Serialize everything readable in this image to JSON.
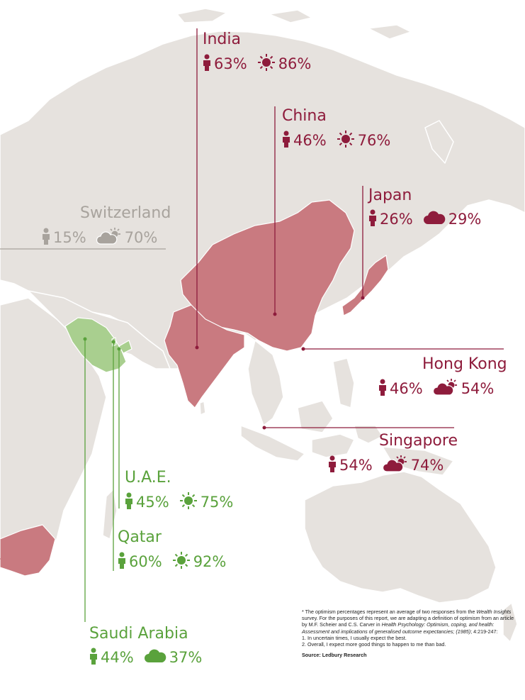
{
  "colors": {
    "land": "#e6e2de",
    "highlight_red": "#c97a80",
    "highlight_green": "#a9cf8f",
    "text_red": "#8e1c3c",
    "text_grey": "#a8a39d",
    "text_green": "#5aa23c"
  },
  "icons": [
    "person-icon",
    "sun-icon",
    "cloud-icon",
    "cloud-sun-icon"
  ],
  "markers": [
    {
      "id": "india",
      "country": "India",
      "stat1": "63%",
      "stat2": "86%",
      "icon2": "sun-icon",
      "color": "red"
    },
    {
      "id": "china",
      "country": "China",
      "stat1": "46%",
      "stat2": "76%",
      "icon2": "sun-icon",
      "color": "red"
    },
    {
      "id": "japan",
      "country": "Japan",
      "stat1": "26%",
      "stat2": "29%",
      "icon2": "cloud-icon",
      "color": "red"
    },
    {
      "id": "switzerland",
      "country": "Switzerland",
      "stat1": "15%",
      "stat2": "70%",
      "icon2": "cloud-sun-icon",
      "color": "grey"
    },
    {
      "id": "hongkong",
      "country": "Hong Kong",
      "stat1": "46%",
      "stat2": "54%",
      "icon2": "cloud-sun-icon",
      "color": "red"
    },
    {
      "id": "singapore",
      "country": "Singapore",
      "stat1": "54%",
      "stat2": "74%",
      "icon2": "cloud-sun-icon",
      "color": "red"
    },
    {
      "id": "uae",
      "country": "U.A.E.",
      "stat1": "45%",
      "stat2": "75%",
      "icon2": "sun-icon",
      "color": "green"
    },
    {
      "id": "qatar",
      "country": "Qatar",
      "stat1": "60%",
      "stat2": "92%",
      "icon2": "sun-icon",
      "color": "green"
    },
    {
      "id": "saudi",
      "country": "Saudi Arabia",
      "stat1": "44%",
      "stat2": "37%",
      "icon2": "cloud-icon",
      "color": "green"
    }
  ],
  "footnote": {
    "p1_a": "* The optimism percentages represent an average of two responses from the ",
    "p1_b": "Wealth Insights",
    "p1_c": " survey. For the purposes of this report, we are adapting a definition of optimism from an article by M.F. Scheier and C.S. Carver in ",
    "p1_d": "Health Psychology: Optimism, coping, and health: Assessment and implications of generalised outcome expectancies; (1985)",
    "p1_e": "; 4:219-247:",
    "item1": "1. In uncertain times, I usually expect the best.",
    "item2": "2. Overall, I expect more good things to happen to me than bad.",
    "source": "Source: Ledbury Research"
  }
}
